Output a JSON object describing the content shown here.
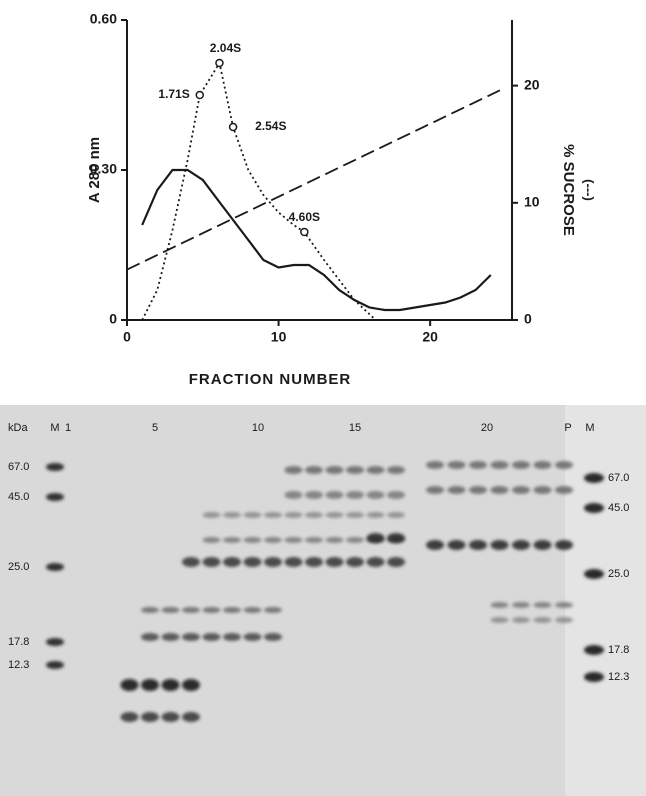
{
  "chart_data": {
    "type": "line",
    "xlabel": "FRACTION NUMBER",
    "ylabel": "A 280 nm",
    "y2label": "% SUCROSE",
    "y2label_note": "(---)",
    "xlim": [
      0,
      25.4
    ],
    "xticks": [
      0,
      10,
      20
    ],
    "ylim": [
      0,
      0.6
    ],
    "yticks": [
      0,
      {
        "value": 0.3,
        "label": "0.30"
      },
      {
        "value": 0.6,
        "label": "0.60"
      }
    ],
    "y2lim": [
      0,
      25.6
    ],
    "y2ticks": [
      0,
      10,
      20
    ],
    "series": [
      {
        "style": "solid",
        "color": "#1a1a1a",
        "x": [
          1,
          2,
          3,
          4,
          5,
          6,
          7,
          8,
          9,
          10,
          11,
          12,
          13,
          14,
          15,
          16,
          17,
          18,
          19,
          20,
          21,
          22,
          23,
          24
        ],
        "values": [
          0.19,
          0.26,
          0.3,
          0.3,
          0.28,
          0.24,
          0.2,
          0.16,
          0.12,
          0.105,
          0.11,
          0.11,
          0.09,
          0.06,
          0.04,
          0.025,
          0.02,
          0.02,
          0.025,
          0.03,
          0.035,
          0.045,
          0.06,
          0.09
        ]
      },
      {
        "style": "dotted",
        "color": "#1a1a1a",
        "x": [
          1,
          2,
          3,
          4,
          4.8,
          6.1,
          7.0,
          8,
          9,
          10,
          11,
          11.7,
          13,
          14,
          15,
          16.4
        ],
        "values": [
          0,
          0.06,
          0.18,
          0.32,
          0.45,
          0.514,
          0.386,
          0.3,
          0.25,
          0.215,
          0.19,
          0.176,
          0.12,
          0.08,
          0.04,
          0
        ]
      },
      {
        "style": "dashed",
        "color": "#1a1a1a",
        "axis": "y2",
        "x": [
          0,
          24.6
        ],
        "values": [
          4.3,
          19.6
        ]
      }
    ],
    "annotations": [
      {
        "text": "1.71S",
        "x": 4.8,
        "y": 0.45
      },
      {
        "text": "2.04S",
        "x": 6.1,
        "y": 0.514
      },
      {
        "text": "2.54S",
        "x": 7.0,
        "y": 0.386
      },
      {
        "text": "4.60S",
        "x": 11.7,
        "y": 0.176
      }
    ]
  },
  "gel": {
    "unit_label": "kDa",
    "lane_labels": [
      "M",
      "1",
      "5",
      "10",
      "15",
      "20",
      "P",
      "M"
    ],
    "left_markers": [
      "67.0",
      "45.0",
      "25.0",
      "17.8",
      "12.3"
    ],
    "right_markers": [
      "67.0",
      "45.0",
      "25.0",
      "17.8",
      "12.3"
    ]
  }
}
